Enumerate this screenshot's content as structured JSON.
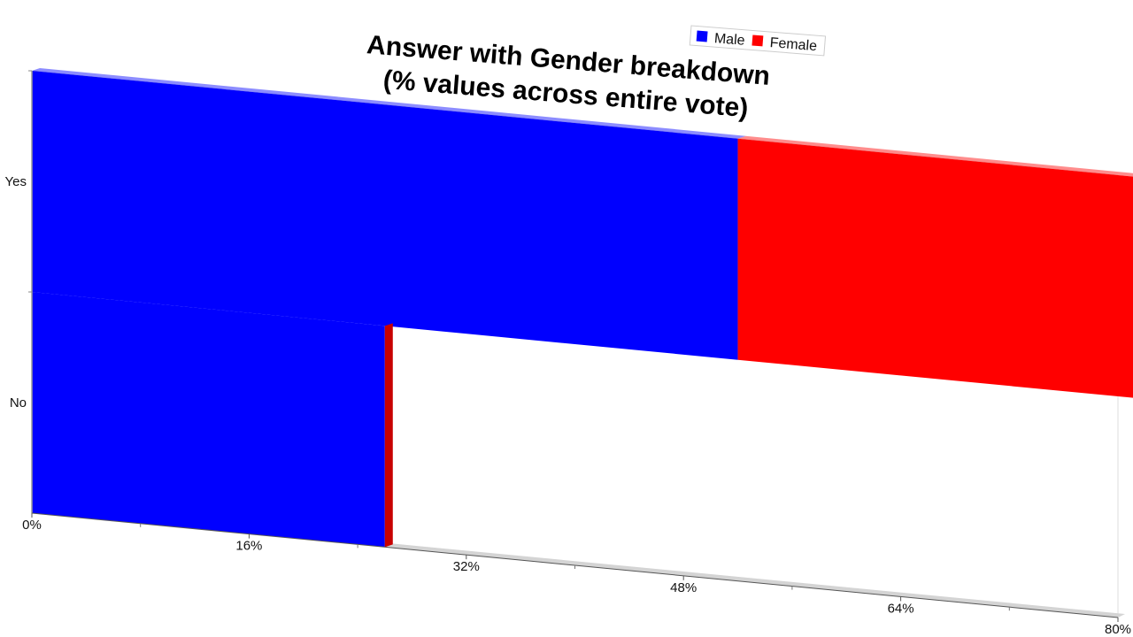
{
  "chart_data": {
    "type": "bar",
    "orientation": "horizontal",
    "stacked": true,
    "title_lines": [
      "Answer with Gender breakdown",
      "(% values across entire vote)"
    ],
    "categories": [
      "Yes",
      "No"
    ],
    "series": [
      {
        "name": "Male",
        "color": "#0000ff",
        "values": [
          52,
          26
        ]
      },
      {
        "name": "Female",
        "color": "#ff0000",
        "values": [
          47,
          0
        ]
      }
    ],
    "x_ticks": [
      "0%",
      "16%",
      "32%",
      "48%",
      "64%",
      "80%"
    ],
    "x_tick_values": [
      0,
      16,
      32,
      48,
      64,
      80
    ],
    "xlim": [
      0,
      100
    ],
    "legend_position": "top-right"
  }
}
